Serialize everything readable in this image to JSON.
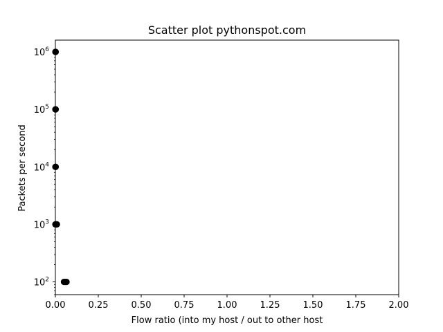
{
  "chart_data": {
    "type": "scatter",
    "title": "Scatter plot pythonspot.com",
    "xlabel": "Flow ratio (into my host / out to other host",
    "ylabel": "Packets per second",
    "xlim": [
      0,
      2.0
    ],
    "ylim": [
      60,
      1600000
    ],
    "yscale": "log",
    "grid": false,
    "x_ticks": [
      "0.00",
      "0.25",
      "0.50",
      "0.75",
      "1.00",
      "1.25",
      "1.50",
      "1.75",
      "2.00"
    ],
    "x_tick_values": [
      0,
      0.25,
      0.5,
      0.75,
      1.0,
      1.25,
      1.5,
      1.75,
      2.0
    ],
    "y_tick_values": [
      100,
      1000,
      10000,
      100000,
      1000000
    ],
    "y_tick_base": "10",
    "y_tick_exponents": [
      "2",
      "3",
      "4",
      "5",
      "6"
    ],
    "marker_color": "#000000",
    "points": [
      {
        "x": 0.0,
        "y": 1000000
      },
      {
        "x": 0.002,
        "y": 1000000
      },
      {
        "x": 0.0,
        "y": 100000
      },
      {
        "x": 0.002,
        "y": 100000
      },
      {
        "x": 0.0,
        "y": 10000
      },
      {
        "x": 0.002,
        "y": 10000
      },
      {
        "x": 0.0,
        "y": 1000
      },
      {
        "x": 0.003,
        "y": 1000
      },
      {
        "x": 0.006,
        "y": 1000
      },
      {
        "x": 0.009,
        "y": 1000
      },
      {
        "x": 0.05,
        "y": 100
      },
      {
        "x": 0.055,
        "y": 100
      },
      {
        "x": 0.06,
        "y": 100
      },
      {
        "x": 0.065,
        "y": 100
      }
    ]
  }
}
